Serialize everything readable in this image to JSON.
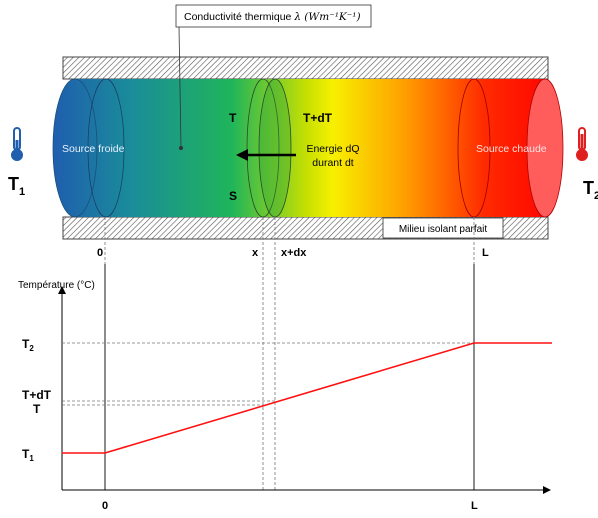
{
  "cylinder": {
    "conductivity_label": "Conductivité thermique",
    "conductivity_symbol": "λ (Wm⁻¹K⁻¹)",
    "cold_source": "Source froide",
    "hot_source": "Source chaude",
    "insulation": "Milieu isolant parfait",
    "T": "T",
    "TdT": "T+dT",
    "S": "S",
    "energy_line1": "Energie dQ",
    "energy_line2": "durant dt",
    "T1_main": "T",
    "T1_sub": "1",
    "T2_main": "T",
    "T2_sub": "2",
    "colors": {
      "cold": "#1f5fae",
      "mid": "#f7f000",
      "hot": "#ff0000"
    }
  },
  "positions": {
    "zero": "0",
    "x": "x",
    "xdx": "x+dx",
    "L": "L"
  },
  "graph": {
    "ylabel": "Température (°C)",
    "y_ticks": {
      "T2_main": "T",
      "T2_sub": "2",
      "TdT": "T+dT",
      "T": "T",
      "T1_main": "T",
      "T1_sub": "1"
    },
    "x_ticks": {
      "zero": "0",
      "L": "L"
    }
  },
  "chart_data": {
    "type": "line",
    "series": [
      {
        "x": [
          "start",
          "0",
          "L",
          "end"
        ],
        "y": [
          "T1",
          "T1",
          "T2",
          "T2"
        ]
      }
    ],
    "xlabel": "",
    "ylabel": "Température (°C)"
  }
}
